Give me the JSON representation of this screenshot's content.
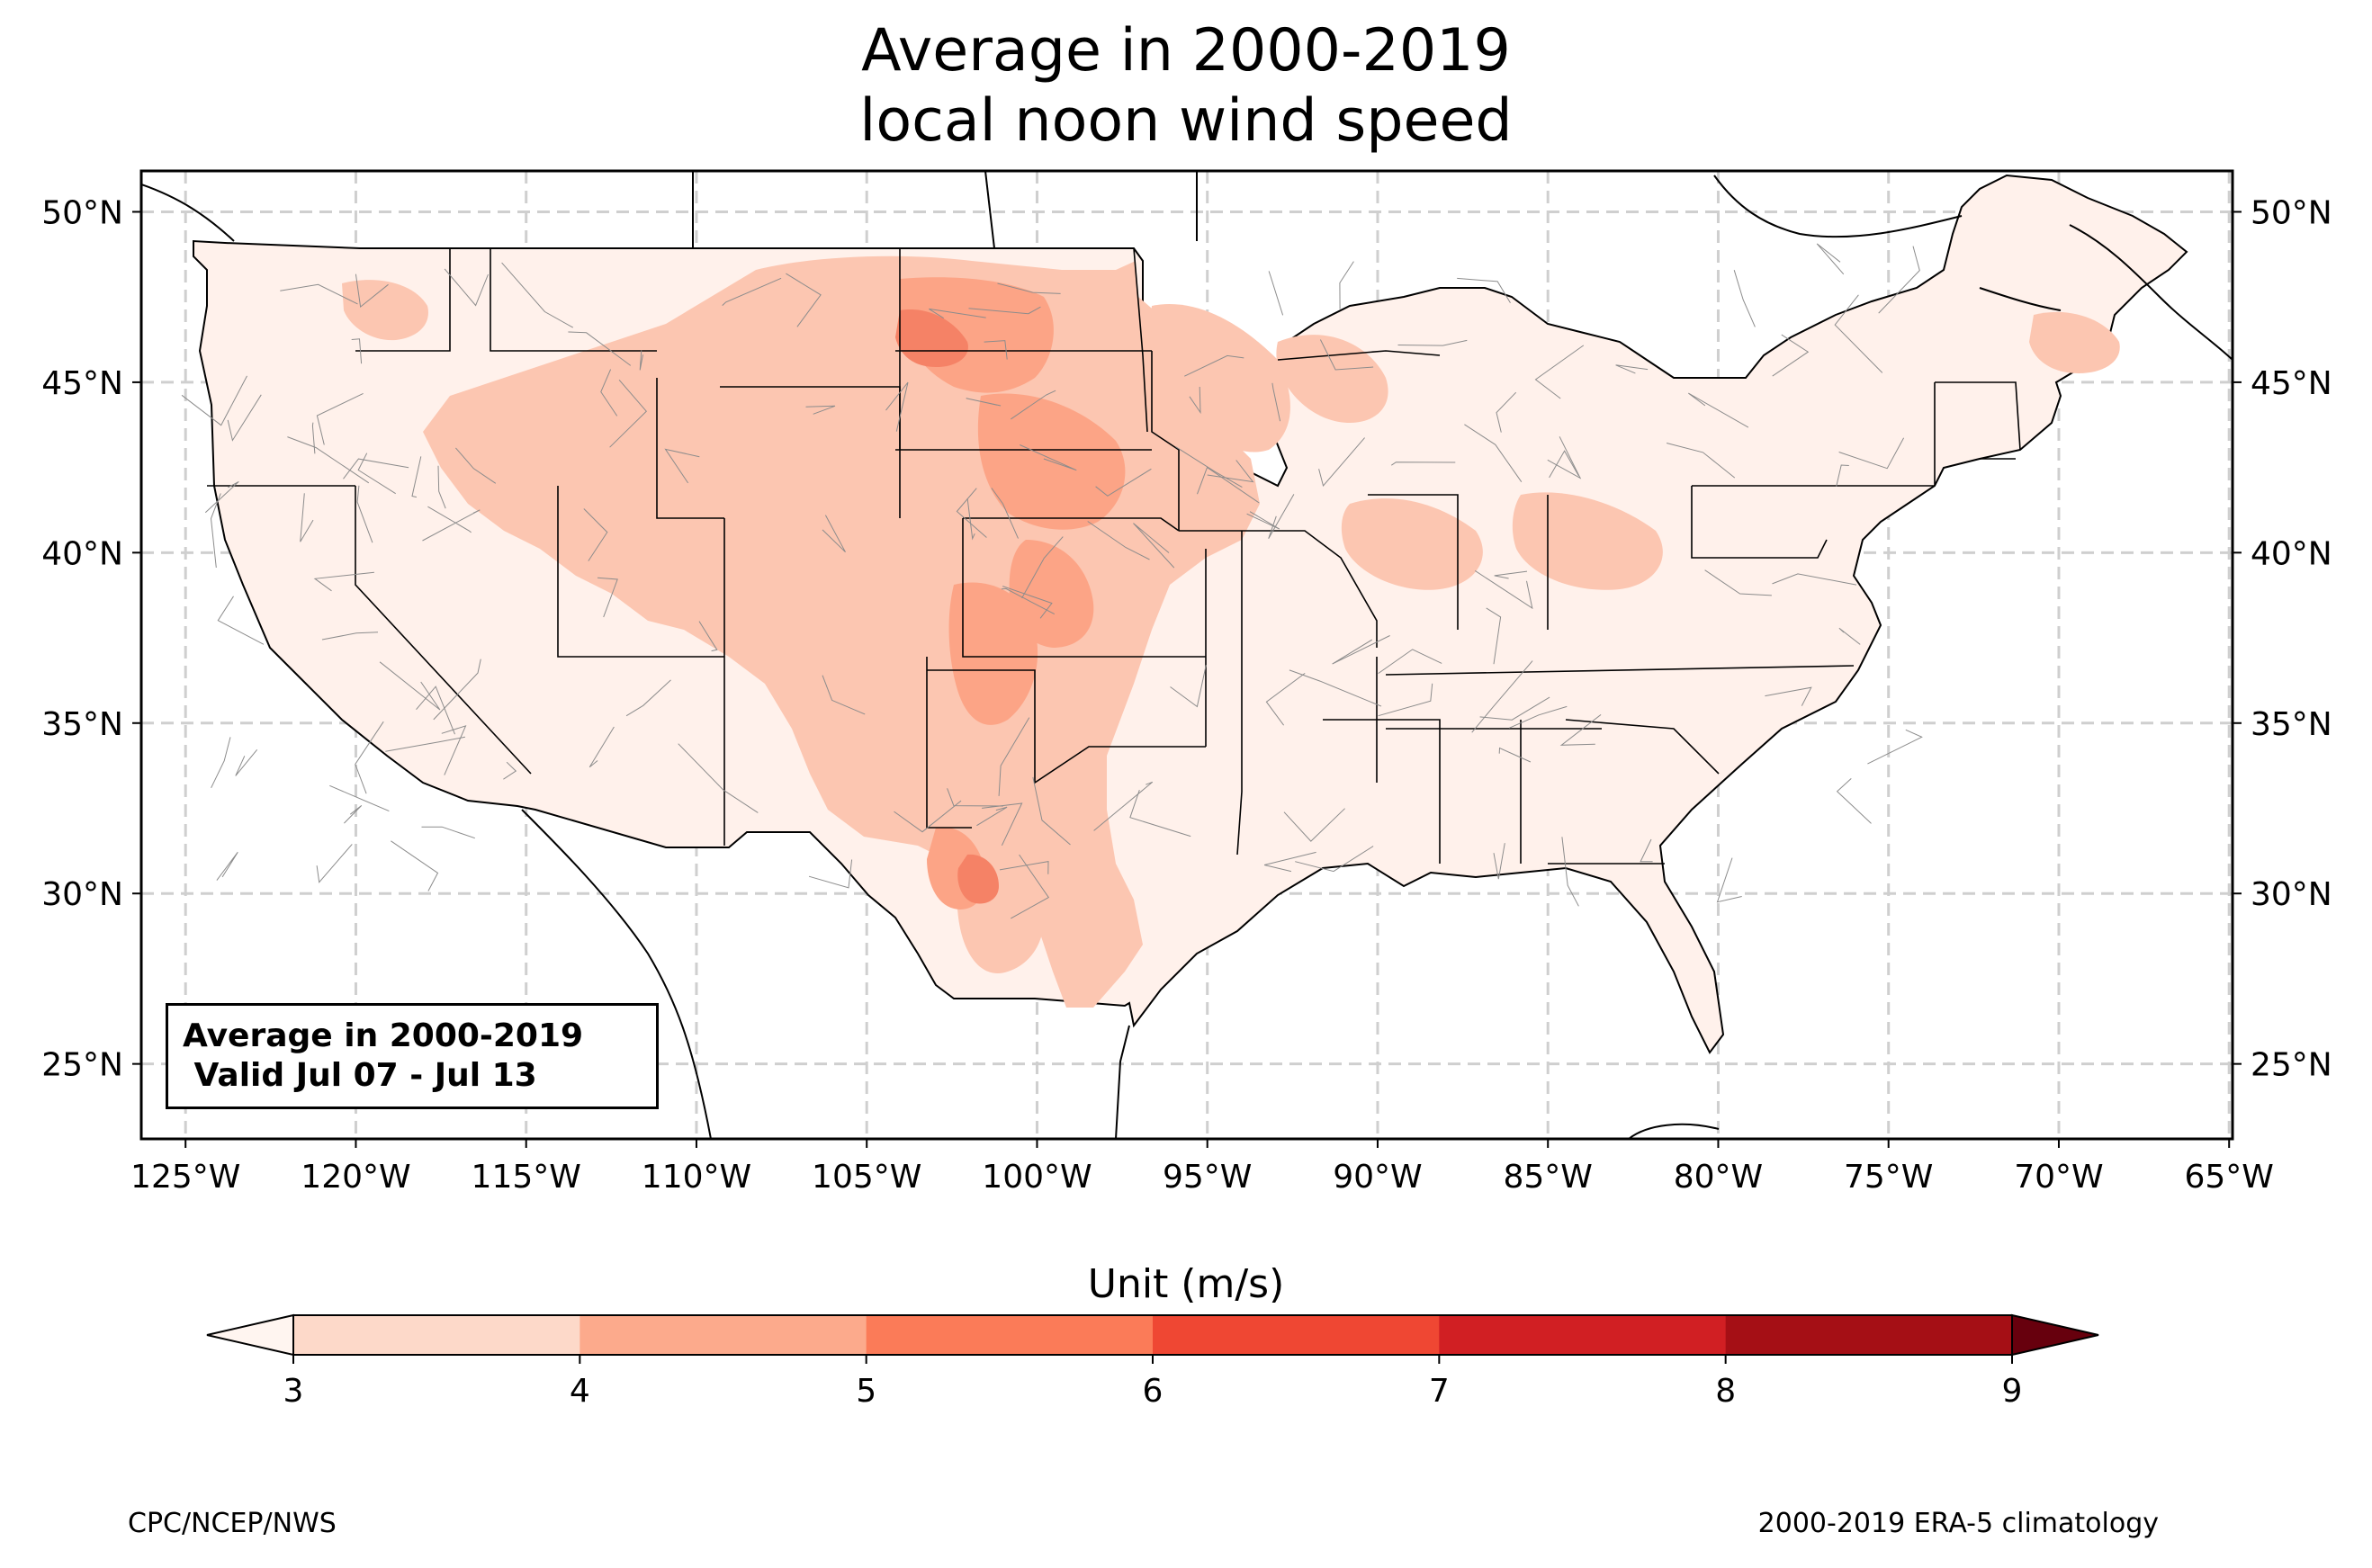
{
  "title": {
    "line1": "Average in 2000-2019",
    "line2": "local noon wind speed"
  },
  "info_box": {
    "line1": "Average in 2000-2019",
    "line2": " Valid Jul 07 - Jul 13"
  },
  "map": {
    "lon_ticks": [
      "125°W",
      "120°W",
      "115°W",
      "110°W",
      "105°W",
      "100°W",
      "95°W",
      "90°W",
      "85°W",
      "80°W",
      "75°W",
      "70°W",
      "65°W"
    ],
    "lat_ticks": [
      "50°N",
      "45°N",
      "40°N",
      "35°N",
      "30°N",
      "25°N"
    ],
    "lon_range": [
      -126.3,
      -64.9
    ],
    "lat_range": [
      22.8,
      51.2
    ],
    "gridlines": true,
    "projection": "PlateCarree",
    "extend": "both"
  },
  "colorbar": {
    "title": "Unit (m/s)",
    "ticks": [
      "3",
      "4",
      "5",
      "6",
      "7",
      "8",
      "9"
    ],
    "levels": [
      3,
      4,
      5,
      6,
      7,
      8,
      9
    ],
    "colors": [
      "#fdd9c9",
      "#fcaa8c",
      "#fb7b58",
      "#ef4733",
      "#d11f23",
      "#a50f15"
    ],
    "under_color": "#fff5f0",
    "over_color": "#67000d"
  },
  "footer": {
    "left": "CPC/NCEP/NWS",
    "right": "2000-2019 ERA-5 climatology"
  }
}
